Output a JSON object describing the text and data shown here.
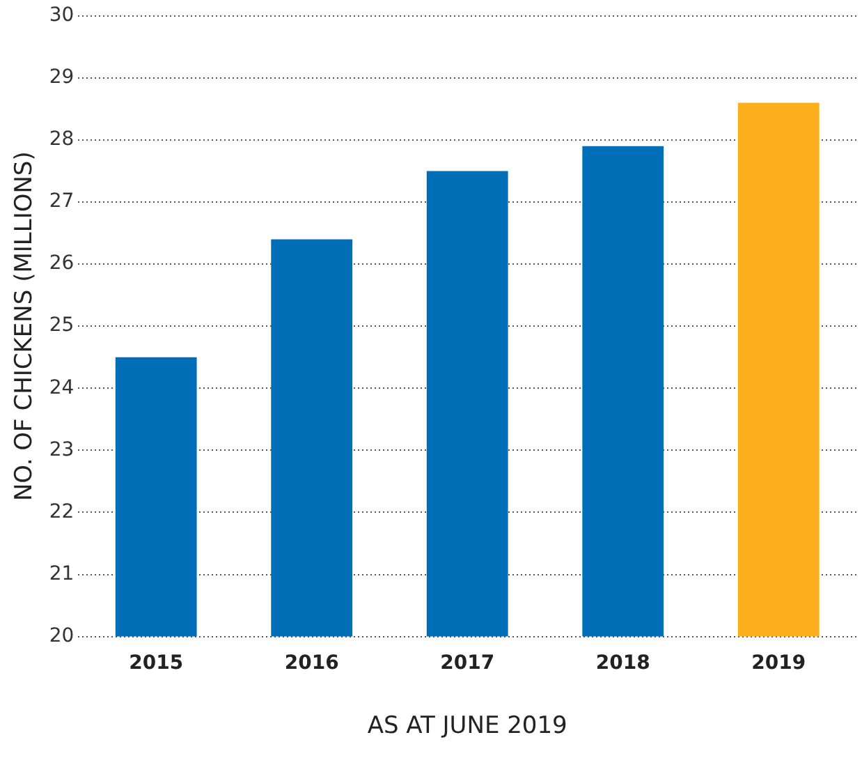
{
  "chart_data": {
    "type": "bar",
    "xlabel": "AS AT JUNE 2019",
    "ylabel": "NO. OF CHICKENS (MILLIONS)",
    "categories": [
      "2015",
      "2016",
      "2017",
      "2018",
      "2019"
    ],
    "values": [
      24.5,
      26.4,
      27.5,
      27.9,
      28.6
    ],
    "colors": [
      "#006eb7",
      "#006eb7",
      "#006eb7",
      "#006eb7",
      "#fbb01b"
    ],
    "ylim": [
      20,
      30
    ],
    "yticks": [
      20,
      21,
      22,
      23,
      24,
      25,
      26,
      27,
      28,
      29,
      30
    ],
    "grid": "y",
    "legend": false
  }
}
